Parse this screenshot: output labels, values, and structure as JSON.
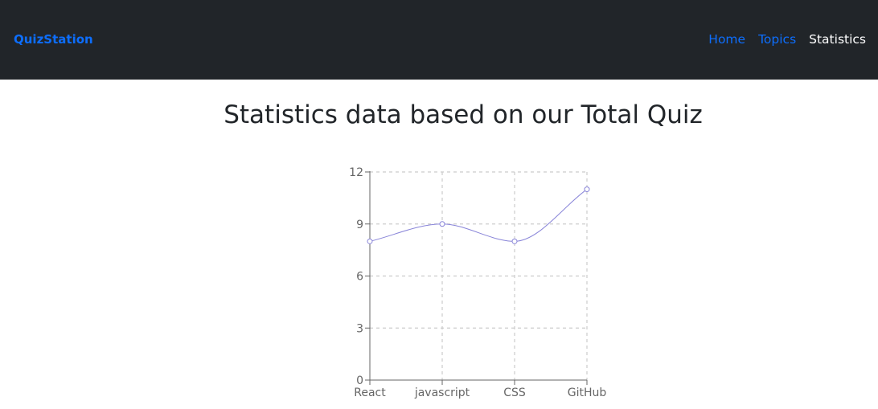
{
  "navbar": {
    "brand": "QuizStation",
    "links": [
      {
        "label": "Home",
        "active": false
      },
      {
        "label": "Topics",
        "active": false
      },
      {
        "label": "Statistics",
        "active": true
      }
    ]
  },
  "page": {
    "title": "Statistics data based on our Total Quiz"
  },
  "colors": {
    "navbar_bg": "#212529",
    "brand": "#0d6efd",
    "link": "#0d6efd",
    "link_active": "#ffffff",
    "series": "#8884d8",
    "grid": "#cccccc",
    "axis": "#666666"
  },
  "chart_data": {
    "type": "line",
    "categories": [
      "React",
      "javascript",
      "CSS",
      "GitHub"
    ],
    "series": [
      {
        "values": [
          8,
          9,
          8,
          11
        ]
      }
    ],
    "ylim": [
      0,
      12
    ],
    "yticks": [
      0,
      3,
      6,
      9,
      12
    ],
    "grid": true,
    "curve": "smooth"
  }
}
